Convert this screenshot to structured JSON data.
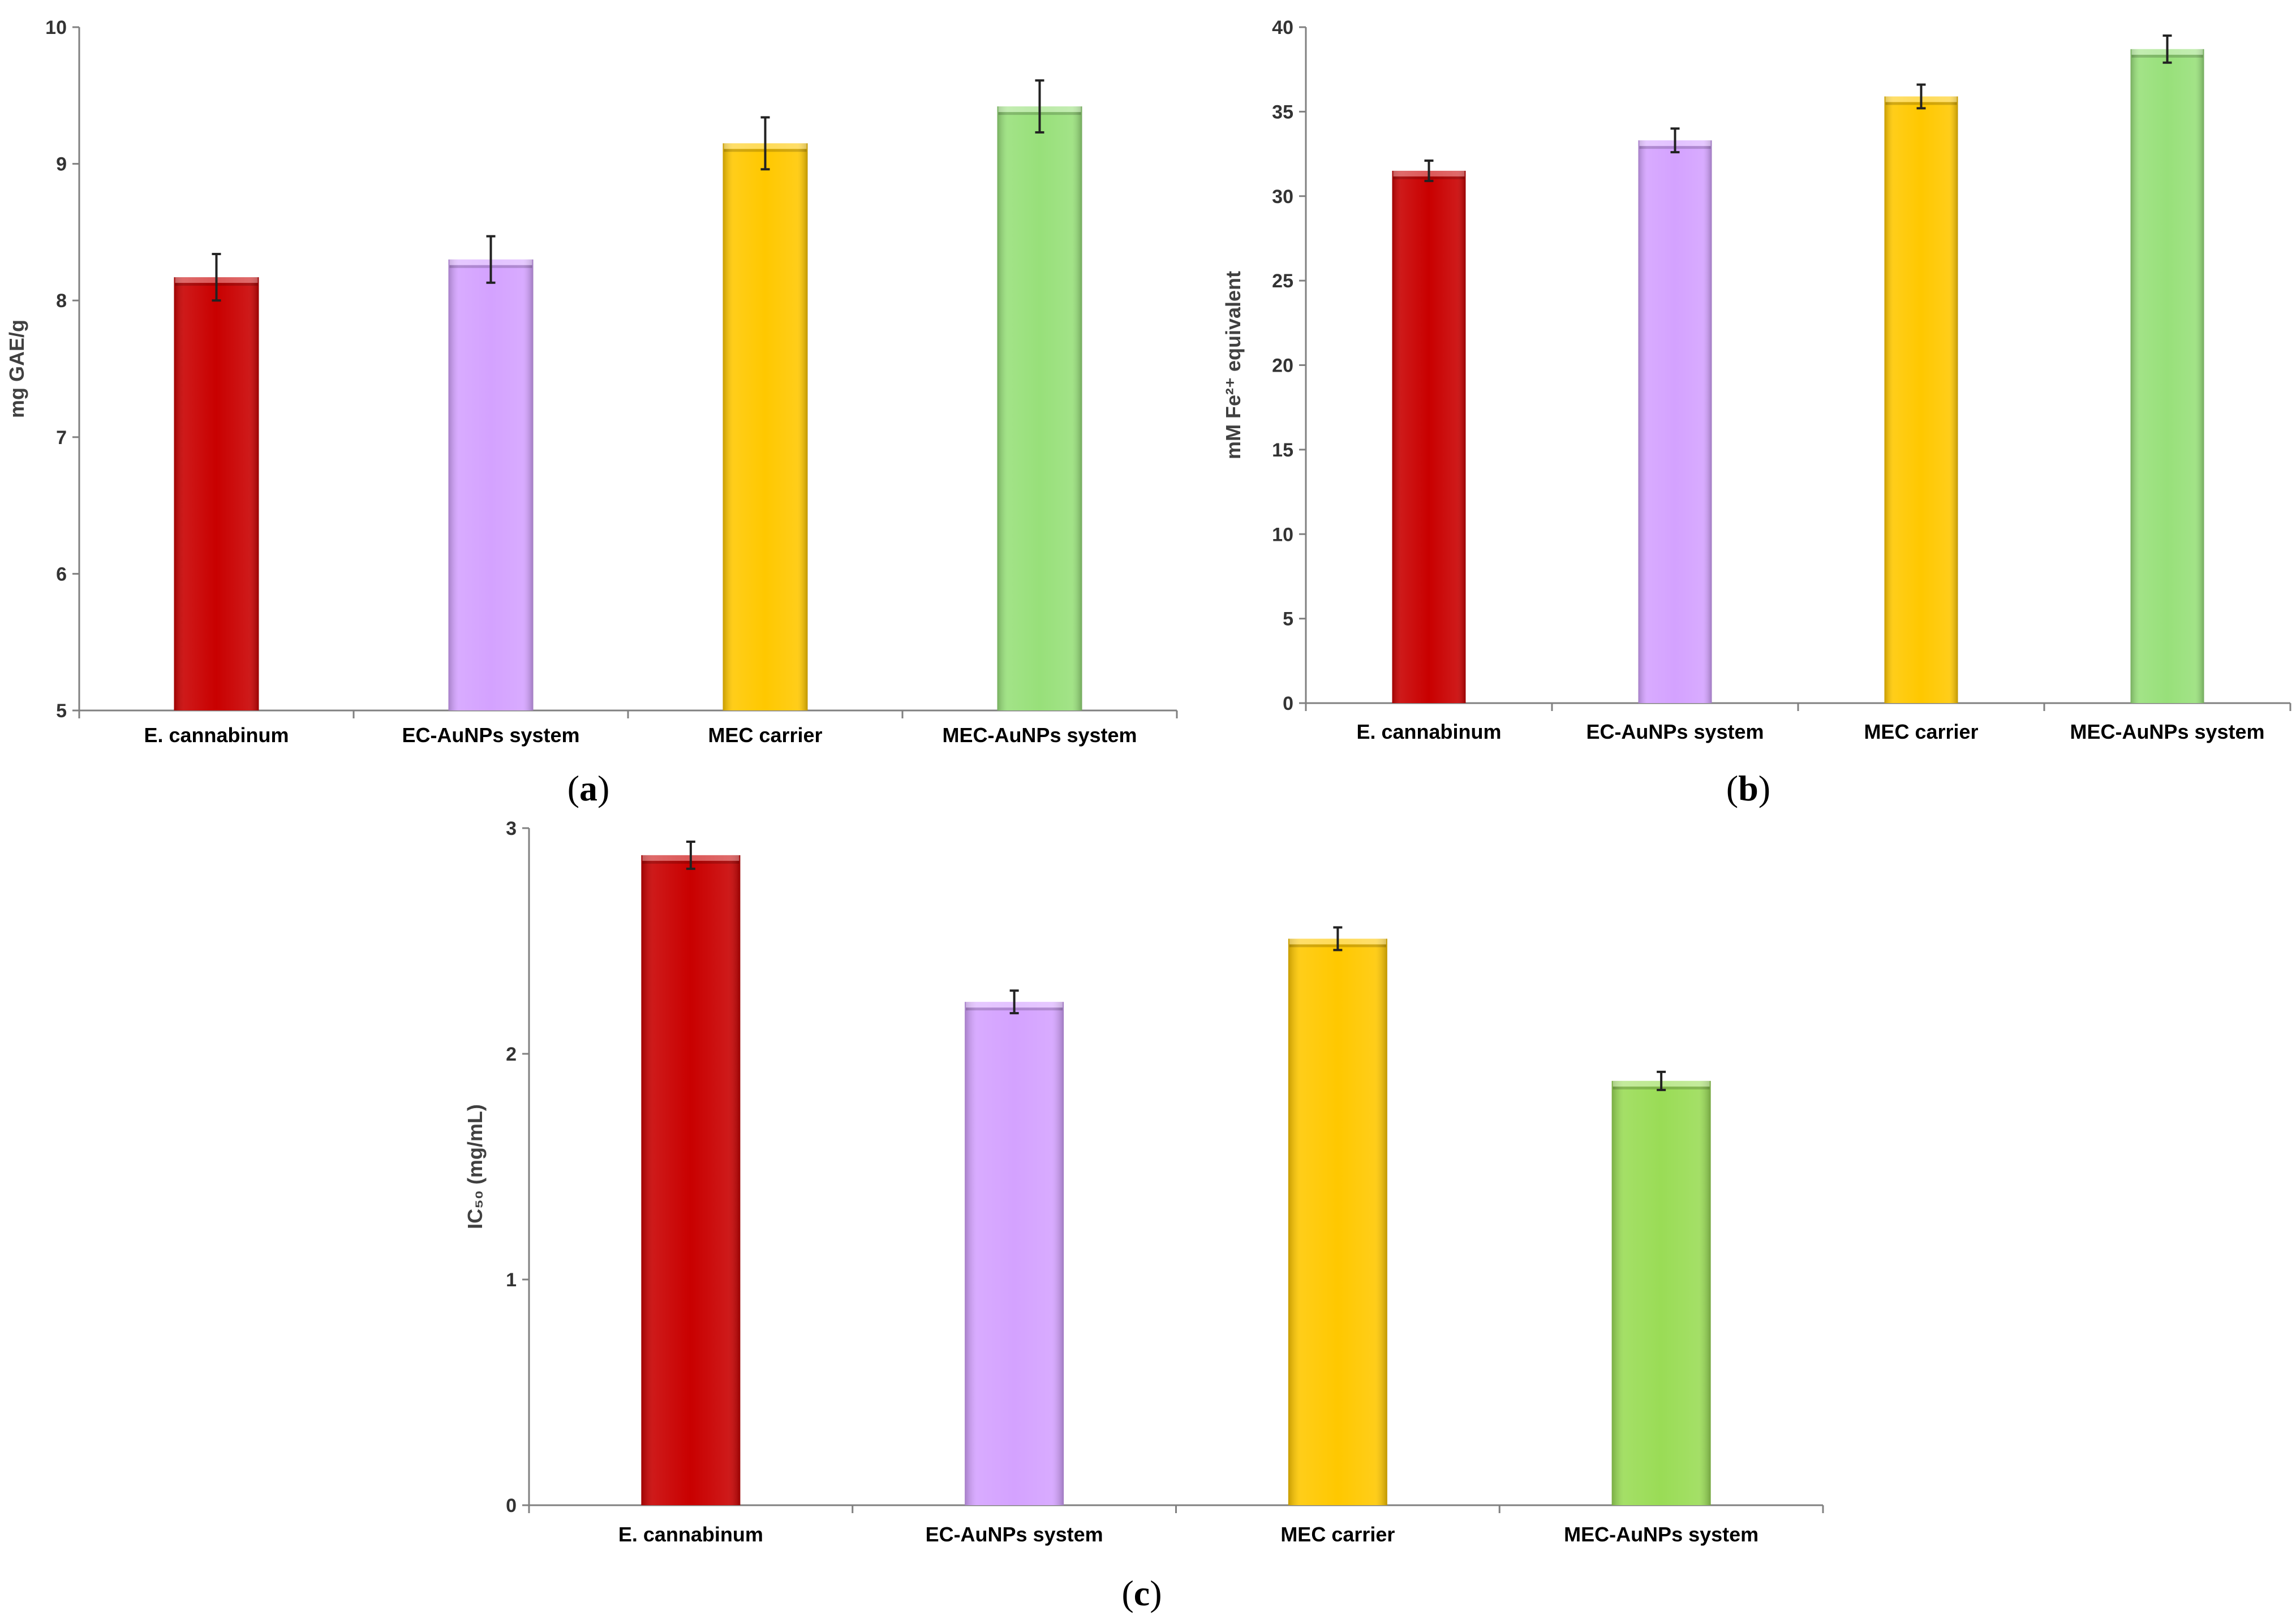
{
  "colors": {
    "bar_colors": [
      "#C90000",
      "#D4A2FF",
      "#FFC800",
      "#98E07A"
    ],
    "bar_colors_c": [
      "#C90000",
      "#D4A2FF",
      "#FFC800",
      "#9ADC56"
    ],
    "axis": "#808080"
  },
  "chart_data": [
    {
      "panel": "(a)",
      "panel_letter": "a",
      "type": "bar",
      "title": "",
      "xlabel": "",
      "ylabel": "mg GAE/g",
      "ylim": [
        5,
        10
      ],
      "yticks": [
        5,
        6,
        7,
        8,
        9,
        10
      ],
      "ytick_labels": [
        "5",
        "6",
        "7",
        "8",
        "9",
        "10"
      ],
      "categories": [
        "E. cannabinum",
        "EC-AuNPs system",
        "MEC carrier",
        "MEC-AuNPs system"
      ],
      "values": [
        8.17,
        8.3,
        9.15,
        9.42
      ],
      "errors": [
        0.17,
        0.17,
        0.19,
        0.19
      ],
      "grid": false
    },
    {
      "panel": "(b)",
      "panel_letter": "b",
      "type": "bar",
      "title": "",
      "xlabel": "",
      "ylabel": "mM Fe²⁺ equivalent",
      "ylim": [
        0,
        40
      ],
      "yticks": [
        0,
        5,
        10,
        15,
        20,
        25,
        30,
        35,
        40
      ],
      "ytick_labels": [
        "0",
        "5",
        "10",
        "15",
        "20",
        "25",
        "30",
        "35",
        "40"
      ],
      "categories": [
        "E. cannabinum",
        "EC-AuNPs system",
        "MEC carrier",
        "MEC-AuNPs system"
      ],
      "values": [
        31.5,
        33.3,
        35.9,
        38.7
      ],
      "errors": [
        0.6,
        0.7,
        0.7,
        0.8
      ],
      "grid": false
    },
    {
      "panel": "(c)",
      "panel_letter": "c",
      "type": "bar",
      "title": "",
      "xlabel": "",
      "ylabel": "IC₅₀ (mg/mL)",
      "ylim": [
        0,
        3
      ],
      "yticks": [
        0,
        1,
        2,
        3
      ],
      "ytick_labels": [
        "0",
        "1",
        "2",
        "3"
      ],
      "categories": [
        "E. cannabinum",
        "EC-AuNPs system",
        "MEC carrier",
        "MEC-AuNPs system"
      ],
      "values": [
        2.88,
        2.23,
        2.51,
        1.88
      ],
      "errors": [
        0.06,
        0.05,
        0.05,
        0.04
      ],
      "grid": false
    }
  ]
}
